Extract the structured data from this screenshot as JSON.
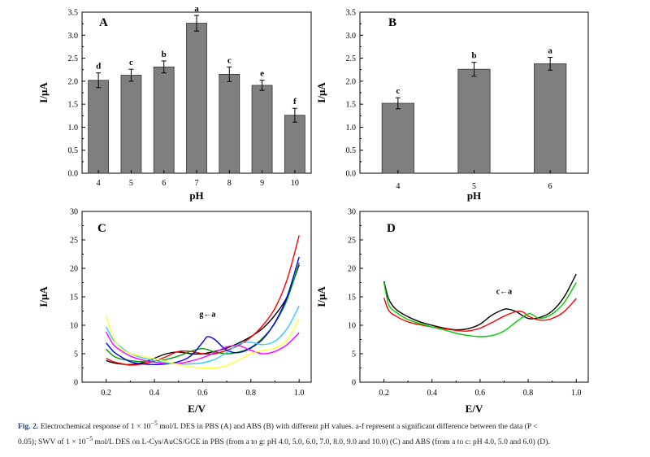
{
  "chart_data": [
    {
      "panel": "A",
      "type": "bar",
      "xlabel": "pH",
      "ylabel": "I/μA",
      "ylim": [
        0,
        3.5
      ],
      "yticks": [
        "0.0",
        "0.5",
        "1.0",
        "1.5",
        "2.0",
        "2.5",
        "3.0",
        "3.5"
      ],
      "categories": [
        "4",
        "5",
        "6",
        "7",
        "8",
        "9",
        "10"
      ],
      "values": [
        2.02,
        2.13,
        2.31,
        3.26,
        2.15,
        1.91,
        1.26
      ],
      "errors": [
        0.16,
        0.13,
        0.13,
        0.17,
        0.16,
        0.11,
        0.15
      ],
      "significance": [
        "d",
        "c",
        "b",
        "a",
        "c",
        "e",
        "f"
      ],
      "bar_color": "#7f7f7f"
    },
    {
      "panel": "B",
      "type": "bar",
      "xlabel": "pH",
      "ylabel": "I/μA",
      "ylim": [
        0,
        3.5
      ],
      "yticks": [
        "0.0",
        "0.5",
        "1.0",
        "1.5",
        "2.0",
        "2.5",
        "3.0",
        "3.5"
      ],
      "categories": [
        "4",
        "5",
        "6"
      ],
      "values": [
        1.52,
        2.26,
        2.38
      ],
      "errors": [
        0.12,
        0.15,
        0.14
      ],
      "significance": [
        "c",
        "b",
        "a"
      ],
      "bar_color": "#7f7f7f"
    },
    {
      "panel": "C",
      "type": "line",
      "xlabel": "E/V",
      "ylabel": "I/μA",
      "xlim": [
        0.1,
        1.05
      ],
      "ylim": [
        0,
        30
      ],
      "xticks": [
        "0.2",
        "0.4",
        "0.6",
        "0.8",
        "1.0"
      ],
      "yticks": [
        "0",
        "5",
        "10",
        "15",
        "20",
        "25",
        "30"
      ],
      "annotation": "g←a",
      "series": [
        {
          "color": "#000000",
          "x": [
            0.2,
            0.23,
            0.26,
            0.3,
            0.35,
            0.4,
            0.45,
            0.5,
            0.55,
            0.6,
            0.65,
            0.7,
            0.75,
            0.8,
            0.85,
            0.9,
            0.95,
            1.0
          ],
          "y": [
            3.8,
            3.4,
            3.2,
            3.1,
            3.4,
            4.2,
            5.0,
            5.3,
            5.0,
            5.0,
            5.4,
            6.0,
            6.9,
            8.0,
            9.5,
            11.8,
            15.0,
            20.6
          ]
        },
        {
          "color": "#ff0000",
          "x": [
            0.2,
            0.23,
            0.26,
            0.3,
            0.35,
            0.4,
            0.45,
            0.5,
            0.55,
            0.6,
            0.65,
            0.7,
            0.75,
            0.8,
            0.85,
            0.9,
            0.95,
            1.0
          ],
          "y": [
            4.2,
            3.6,
            3.3,
            3.0,
            3.2,
            3.7,
            4.5,
            5.4,
            5.4,
            5.0,
            5.0,
            5.6,
            6.5,
            7.9,
            10.0,
            13.0,
            18.0,
            25.8
          ]
        },
        {
          "color": "#009900",
          "x": [
            0.2,
            0.23,
            0.26,
            0.3,
            0.35,
            0.4,
            0.45,
            0.5,
            0.55,
            0.6,
            0.65,
            0.7,
            0.75,
            0.8,
            0.85,
            0.9,
            0.95,
            1.0
          ],
          "y": [
            5.8,
            4.6,
            4.1,
            3.8,
            3.6,
            3.7,
            4.0,
            4.6,
            5.4,
            5.9,
            5.3,
            5.0,
            5.3,
            6.1,
            7.8,
            10.4,
            14.5,
            21.0
          ]
        },
        {
          "color": "#0000ee",
          "x": [
            0.2,
            0.23,
            0.26,
            0.3,
            0.35,
            0.4,
            0.45,
            0.5,
            0.55,
            0.6,
            0.62,
            0.65,
            0.7,
            0.75,
            0.8,
            0.85,
            0.9,
            0.95,
            1.0
          ],
          "y": [
            6.9,
            5.4,
            4.5,
            3.6,
            3.2,
            3.1,
            3.2,
            3.6,
            4.6,
            7.0,
            8.0,
            7.5,
            5.6,
            5.2,
            6.0,
            7.6,
            10.5,
            15.0,
            22.0
          ]
        },
        {
          "color": "#ff00ff",
          "x": [
            0.2,
            0.23,
            0.26,
            0.3,
            0.35,
            0.4,
            0.45,
            0.5,
            0.55,
            0.6,
            0.65,
            0.7,
            0.75,
            0.8,
            0.85,
            0.9,
            0.95,
            1.0
          ],
          "y": [
            8.8,
            6.6,
            5.6,
            4.6,
            3.9,
            3.5,
            3.3,
            3.3,
            3.7,
            4.3,
            5.2,
            6.2,
            6.4,
            5.6,
            5.0,
            5.4,
            6.6,
            8.7
          ]
        },
        {
          "color": "#33ccff",
          "x": [
            0.2,
            0.23,
            0.26,
            0.3,
            0.35,
            0.4,
            0.45,
            0.5,
            0.55,
            0.6,
            0.65,
            0.7,
            0.75,
            0.8,
            0.85,
            0.9,
            0.95,
            1.0
          ],
          "y": [
            9.7,
            7.4,
            6.2,
            5.0,
            4.3,
            3.8,
            3.4,
            3.2,
            3.2,
            3.4,
            4.0,
            5.2,
            6.7,
            7.0,
            6.6,
            7.2,
            9.4,
            13.4
          ]
        },
        {
          "color": "#ffff33",
          "x": [
            0.2,
            0.23,
            0.26,
            0.3,
            0.35,
            0.4,
            0.45,
            0.5,
            0.55,
            0.6,
            0.65,
            0.7,
            0.75,
            0.8,
            0.85,
            0.9,
            0.95,
            1.0
          ],
          "y": [
            11.8,
            7.8,
            6.0,
            5.0,
            4.6,
            4.1,
            3.6,
            3.1,
            2.7,
            2.5,
            2.5,
            2.9,
            3.9,
            5.0,
            5.6,
            6.0,
            7.4,
            11.2
          ]
        }
      ]
    },
    {
      "panel": "D",
      "type": "line",
      "xlabel": "E/V",
      "ylabel": "I/μA",
      "xlim": [
        0.1,
        1.05
      ],
      "ylim": [
        0,
        30
      ],
      "xticks": [
        "0.2",
        "0.4",
        "0.6",
        "0.8",
        "1.0"
      ],
      "yticks": [
        "0",
        "5",
        "10",
        "15",
        "20",
        "25",
        "30"
      ],
      "annotation": "c←a",
      "series": [
        {
          "color": "#000000",
          "x": [
            0.2,
            0.22,
            0.25,
            0.3,
            0.35,
            0.4,
            0.45,
            0.5,
            0.55,
            0.6,
            0.65,
            0.7,
            0.72,
            0.75,
            0.8,
            0.85,
            0.9,
            0.95,
            1.0
          ],
          "y": [
            17.7,
            14.6,
            12.8,
            11.5,
            10.6,
            10.0,
            9.5,
            9.2,
            9.4,
            10.2,
            11.8,
            12.8,
            12.8,
            12.4,
            11.2,
            11.4,
            12.5,
            15.0,
            19.0
          ]
        },
        {
          "color": "#ff0000",
          "x": [
            0.2,
            0.22,
            0.25,
            0.3,
            0.35,
            0.4,
            0.45,
            0.5,
            0.55,
            0.6,
            0.65,
            0.7,
            0.75,
            0.78,
            0.8,
            0.85,
            0.9,
            0.95,
            1.0
          ],
          "y": [
            14.8,
            12.6,
            11.6,
            10.6,
            10.1,
            9.7,
            9.4,
            9.1,
            9.0,
            9.5,
            10.5,
            11.6,
            12.4,
            12.3,
            11.6,
            10.9,
            11.2,
            12.4,
            14.7
          ]
        },
        {
          "color": "#00cc00",
          "x": [
            0.2,
            0.22,
            0.25,
            0.3,
            0.35,
            0.4,
            0.45,
            0.5,
            0.55,
            0.6,
            0.65,
            0.7,
            0.75,
            0.8,
            0.82,
            0.85,
            0.9,
            0.95,
            1.0
          ],
          "y": [
            17.5,
            13.6,
            12.3,
            11.0,
            10.3,
            9.7,
            9.2,
            8.6,
            8.2,
            8.0,
            8.2,
            9.0,
            10.6,
            12.0,
            11.8,
            11.2,
            12.0,
            14.0,
            17.5
          ]
        }
      ]
    }
  ],
  "panels": {
    "A": "A",
    "B": "B",
    "C": "C",
    "D": "D"
  },
  "caption": {
    "label": "Fig. 2.",
    "line1_pre": "Electrochemical response of 1 × 10",
    "exp1": "−5",
    "line1_post": " mol/L DES in PBS (A) and ABS (B) with different pH values. a-f represent a significant difference between the data (P <",
    "line2_pre": "0.05); SWV of 1 × 10",
    "exp2": "−5",
    "line2_post": " mol/L DES on L-Cys/AuCS/GCE in PBS (from a to g: pH 4.0, 5.0, 6.0, 7.0, 8.0, 9.0 and 10.0) (C) and ABS (from a to c: pH 4.0, 5.0 and 6.0) (D)."
  }
}
